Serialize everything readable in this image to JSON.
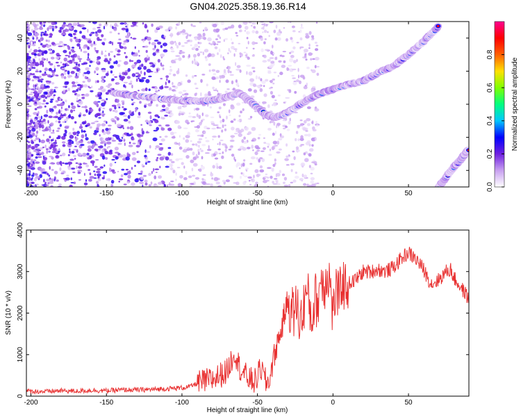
{
  "chart_data": [
    {
      "type": "heatmap",
      "title": "GN04.2025.358.19.36.R14",
      "xlabel": "Height of straight line (km)",
      "ylabel": "Frequency (Hz)",
      "xlim": [
        -203,
        90
      ],
      "ylim": [
        -50,
        50
      ],
      "xticks": [
        -200,
        -150,
        -100,
        -50,
        0,
        50
      ],
      "yticks": [
        -40,
        -20,
        0,
        20,
        40
      ],
      "colorbar": {
        "label": "Normalized spectral amplitude",
        "range": [
          0,
          1
        ],
        "ticks": [
          0.0,
          0.2,
          0.4,
          0.6,
          0.8
        ],
        "colors": [
          "#ffffff",
          "#c8a0f0",
          "#7020e0",
          "#0000ff",
          "#00c8ff",
          "#00ff80",
          "#80ff00",
          "#ffe000",
          "#ff6000",
          "#ff0000",
          "#ff0090"
        ]
      },
      "main_ridge": {
        "x": [
          -145,
          -130,
          -110,
          -100,
          -85,
          -75,
          -68,
          -62,
          -55,
          -45,
          -38,
          -30,
          -20,
          -10,
          0,
          10,
          20,
          30,
          40,
          50,
          60,
          70
        ],
        "y": [
          7,
          5,
          3,
          2,
          2,
          3,
          5,
          7,
          2,
          -6,
          -8,
          -5,
          1,
          6,
          9,
          12,
          14,
          19,
          23,
          30,
          38,
          47
        ]
      },
      "alias_ridge": {
        "x": [
          70,
          75,
          80,
          85,
          90
        ],
        "y": [
          -50,
          -44,
          -38,
          -33,
          -27
        ]
      }
    },
    {
      "type": "line",
      "xlabel": "Height of straight line (km)",
      "ylabel": "SNR (10 * v/v)",
      "xlim": [
        -203,
        90
      ],
      "ylim": [
        0,
        4000
      ],
      "xticks": [
        -200,
        -150,
        -100,
        -50,
        0,
        50
      ],
      "yticks": [
        0,
        1000,
        2000,
        3000,
        4000
      ],
      "color": "#e83030",
      "series": [
        {
          "x": [
            -203,
            -190,
            -180,
            -170,
            -160,
            -150,
            -140,
            -130,
            -120,
            -110,
            -100,
            -95,
            -90,
            -85,
            -80,
            -75,
            -70,
            -67,
            -65,
            -62,
            -58,
            -55,
            -52,
            -50,
            -48,
            -46,
            -44,
            -42,
            -40,
            -38,
            -36,
            -34,
            -32,
            -30,
            -28,
            -26,
            -24,
            -22,
            -20,
            -18,
            -16,
            -14,
            -12,
            -10,
            -8,
            -6,
            -4,
            -2,
            0,
            2,
            4,
            6,
            8,
            10,
            15,
            20,
            25,
            30,
            35,
            40,
            45,
            48,
            50,
            55,
            60,
            65,
            70,
            75,
            78,
            80,
            85,
            90
          ],
          "y": [
            120,
            110,
            130,
            120,
            140,
            130,
            150,
            150,
            160,
            180,
            200,
            230,
            300,
            350,
            400,
            500,
            600,
            900,
            1100,
            700,
            500,
            400,
            350,
            450,
            700,
            500,
            300,
            400,
            800,
            1100,
            1400,
            1600,
            2000,
            2300,
            2100,
            2000,
            2200,
            1800,
            2000,
            2500,
            2300,
            1800,
            2400,
            2200,
            2900,
            2600,
            3000,
            2800,
            1900,
            2600,
            2300,
            2800,
            2600,
            2700,
            2800,
            3000,
            3000,
            3050,
            3000,
            3100,
            3300,
            3400,
            3450,
            3300,
            3050,
            2700,
            2800,
            3000,
            3050,
            2850,
            2600,
            2350
          ]
        }
      ]
    }
  ]
}
